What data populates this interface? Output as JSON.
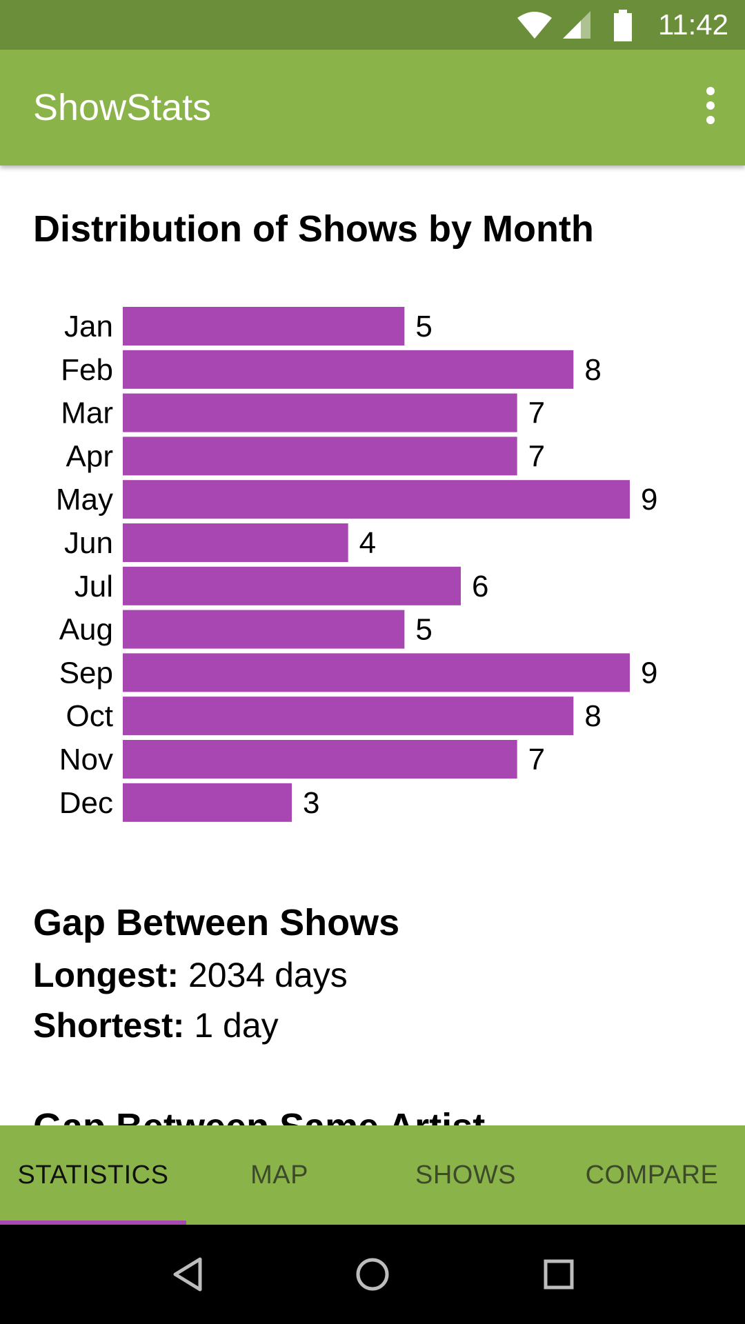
{
  "status_bar": {
    "time": "11:42"
  },
  "app_bar": {
    "title": "ShowStats",
    "menu_icon": "more-vert-icon"
  },
  "distribution": {
    "title": "Distribution of Shows by Month"
  },
  "chart_data": {
    "type": "bar",
    "orientation": "horizontal",
    "categories": [
      "Jan",
      "Feb",
      "Mar",
      "Apr",
      "May",
      "Jun",
      "Jul",
      "Aug",
      "Sep",
      "Oct",
      "Nov",
      "Dec"
    ],
    "values": [
      5,
      8,
      7,
      7,
      9,
      4,
      6,
      5,
      9,
      8,
      7,
      3
    ],
    "title": "Distribution of Shows by Month",
    "xlabel": "",
    "ylabel": "",
    "xlim": [
      0,
      9
    ],
    "grid": false,
    "bar_color": "#a947b2"
  },
  "gap_between_shows": {
    "title": "Gap Between Shows",
    "longest_label": "Longest:",
    "longest_value": " 2034 days",
    "shortest_label": "Shortest:",
    "shortest_value": " 1 day"
  },
  "next_section": {
    "title": "Gap Between Same Artist"
  },
  "tabs": [
    {
      "label": "STATISTICS",
      "active": true
    },
    {
      "label": "MAP",
      "active": false
    },
    {
      "label": "SHOWS",
      "active": false
    },
    {
      "label": "COMPARE",
      "active": false
    }
  ],
  "colors": {
    "status_bar": "#6b8e3a",
    "app_bar": "#8ab34a",
    "accent": "#a947b2"
  },
  "nav_icons": [
    "back-icon",
    "home-icon",
    "recents-icon"
  ]
}
